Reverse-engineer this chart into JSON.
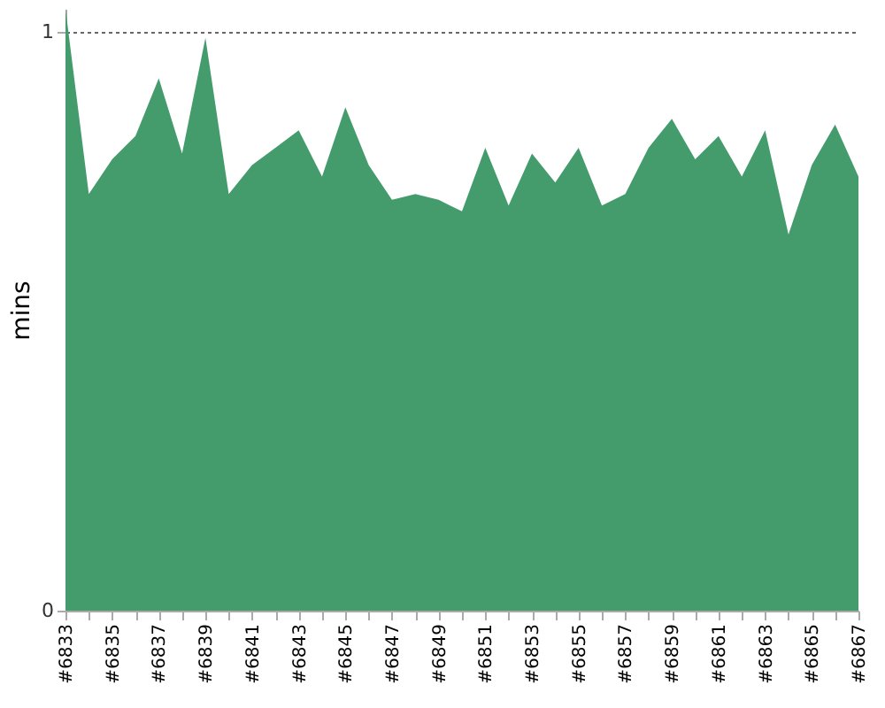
{
  "chart_data": {
    "type": "area",
    "ylabel": "mins",
    "categories": [
      "#6833",
      null,
      "#6835",
      null,
      "#6837",
      null,
      "#6839",
      null,
      "#6841",
      null,
      "#6843",
      null,
      "#6845",
      null,
      "#6847",
      null,
      "#6849",
      null,
      "#6851",
      null,
      "#6853",
      null,
      "#6855",
      null,
      "#6857",
      null,
      "#6859",
      null,
      "#6861",
      null,
      "#6863",
      null,
      "#6865",
      null,
      "#6867"
    ],
    "series": [
      {
        "color": "#449c6c",
        "values": [
          1.04,
          0.72,
          0.78,
          0.82,
          0.92,
          0.79,
          0.99,
          0.72,
          0.77,
          0.8,
          0.83,
          0.75,
          0.87,
          0.77,
          0.71,
          0.72,
          0.71,
          0.69,
          0.8,
          0.7,
          0.79,
          0.74,
          0.8,
          0.7,
          0.72,
          0.8,
          0.85,
          0.78,
          0.82,
          0.75,
          0.83,
          0.65,
          0.77,
          0.84,
          0.75
        ]
      }
    ],
    "ylim": [
      0,
      1.04
    ],
    "yticks": [
      0,
      1
    ],
    "grid": "y"
  }
}
